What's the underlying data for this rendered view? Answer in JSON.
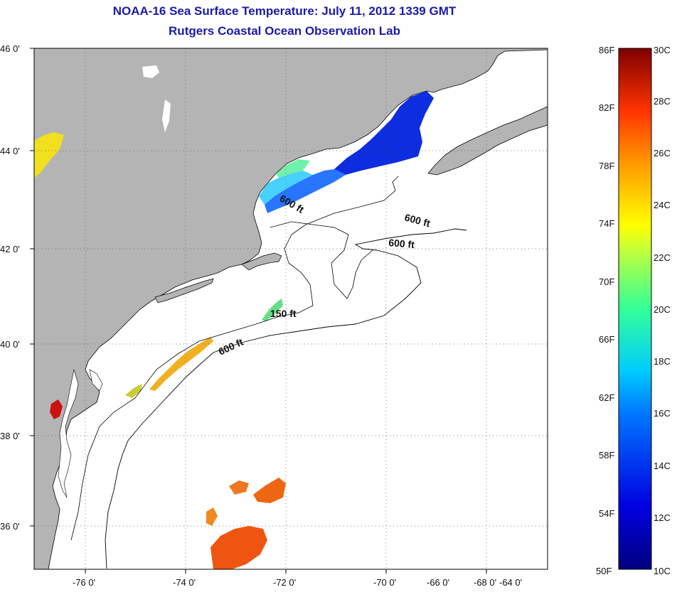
{
  "title_line1": "NOAA-16 Sea Surface Temperature:  July 11, 2012 1339 GMT",
  "title_line2": "Rutgers Coastal Ocean Observation Lab",
  "map": {
    "lon_ticks": [
      "-76 0'",
      "-74 0'",
      "-72 0'",
      "-70 0'",
      "-68 0'",
      "-66 0'",
      "-64 0'"
    ],
    "lat_ticks": [
      "46 0'",
      "44 0'",
      "42 0'",
      "40 0'",
      "38 0'",
      "36 0'"
    ],
    "lon_range": [
      -77,
      -63
    ],
    "lat_range": [
      35,
      46
    ],
    "contour_labels": [
      {
        "text": "600 ft",
        "rotation": 30
      },
      {
        "text": "600 ft",
        "rotation": 15
      },
      {
        "text": "600 ft",
        "rotation": 5
      },
      {
        "text": "150 ft",
        "rotation": 0
      },
      {
        "text": "600 ft",
        "rotation": -25
      }
    ],
    "colors": {
      "land": "#b4b4b4",
      "ocean": "#ffffff",
      "coast": "#000000",
      "grid": "#555555"
    }
  },
  "colorbar": {
    "fahrenheit_labels": [
      "86F",
      "82F",
      "78F",
      "74F",
      "70F",
      "66F",
      "62F",
      "58F",
      "54F",
      "50F"
    ],
    "celsius_labels": [
      "30C",
      "28C",
      "26C",
      "24C",
      "22C",
      "20C",
      "18C",
      "16C",
      "14C",
      "12C",
      "10C"
    ],
    "range_c": [
      10,
      30
    ],
    "range_f": [
      50,
      86
    ]
  }
}
